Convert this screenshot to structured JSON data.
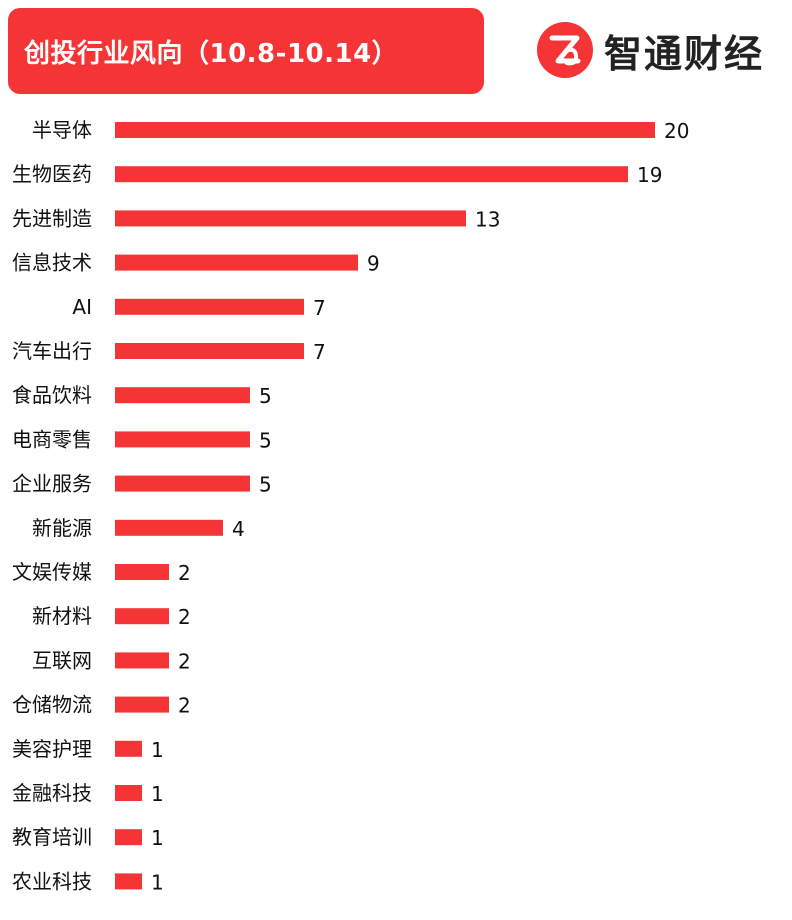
{
  "header": {
    "title": "创投行业风向（10.8-10.14）"
  },
  "brand": {
    "name": "智通财经",
    "logo_icon": "zhitong-logo-icon",
    "logo_color": "#f53436"
  },
  "colors": {
    "bar": "#f53436",
    "banner": "#f53436"
  },
  "chart_data": {
    "type": "bar",
    "orientation": "horizontal",
    "title": "创投行业风向（10.8-10.14）",
    "xlabel": "",
    "ylabel": "",
    "xlim": [
      0,
      20
    ],
    "grid": false,
    "legend": "none",
    "categories": [
      "半导体",
      "生物医药",
      "先进制造",
      "信息技术",
      "AI",
      "汽车出行",
      "食品饮料",
      "电商零售",
      "企业服务",
      "新能源",
      "文娱传媒",
      "新材料",
      "互联网",
      "仓储物流",
      "美容护理",
      "金融科技",
      "教育培训",
      "农业科技"
    ],
    "values": [
      20,
      19,
      13,
      9,
      7,
      7,
      5,
      5,
      5,
      4,
      2,
      2,
      2,
      2,
      1,
      1,
      1,
      1
    ]
  }
}
